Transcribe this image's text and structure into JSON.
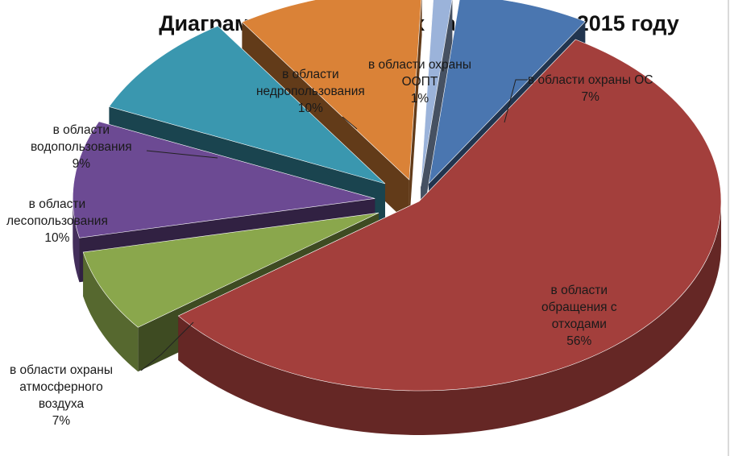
{
  "chart_data": {
    "type": "pie",
    "title": "Диаграмма выявленных нарушений в 2015 году",
    "slices": [
      {
        "label_lines": [
          "в области охраны ОС"
        ],
        "value": 7,
        "value_label": "7%",
        "color": "#4a76b0"
      },
      {
        "label_lines": [
          "в области",
          "обращения с",
          "отходами"
        ],
        "value": 56,
        "value_label": "56%",
        "color": "#a33f3c"
      },
      {
        "label_lines": [
          "в области охраны",
          "атмосферного",
          "воздуха"
        ],
        "value": 7,
        "value_label": "7%",
        "color": "#8aa74c"
      },
      {
        "label_lines": [
          "в области",
          "лесопользования"
        ],
        "value": 10,
        "value_label": "10%",
        "color": "#6c4a93"
      },
      {
        "label_lines": [
          "в области",
          "водопользования"
        ],
        "value": 9,
        "value_label": "9%",
        "color": "#3a97af"
      },
      {
        "label_lines": [
          "в области",
          "недропользования"
        ],
        "value": 10,
        "value_label": "10%",
        "color": "#da8237"
      },
      {
        "label_lines": [
          "в области охраны",
          "ООПТ"
        ],
        "value": 1,
        "value_label": "1%",
        "color": "#9bb3da"
      }
    ],
    "legend": "none",
    "style": "3d-exploded"
  }
}
